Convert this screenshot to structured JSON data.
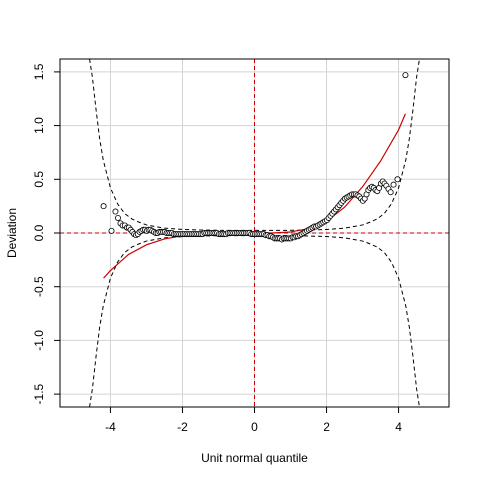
{
  "chart_data": {
    "type": "scatter",
    "title": "",
    "xlabel": "Unit normal quantile",
    "ylabel": "Deviation",
    "xlim": [
      -5.4,
      5.4
    ],
    "ylim": [
      -1.62,
      1.62
    ],
    "x_ticks": [
      -4,
      -2,
      0,
      2,
      4
    ],
    "x_tick_labels": [
      "-4",
      "-2",
      "0",
      "2",
      "4"
    ],
    "y_ticks": [
      -1.5,
      -1.0,
      -0.5,
      0.0,
      0.5,
      1.0,
      1.5
    ],
    "y_tick_labels": [
      "-1.5",
      "-1.0",
      "-0.5",
      "0.0",
      "0.5",
      "1.0",
      "1.5"
    ],
    "grid": true,
    "reference_lines": {
      "x": 0,
      "y": 0,
      "color": "#cc0000",
      "style": "dashed"
    },
    "series": [
      {
        "kind": "points",
        "marker": "open-circle",
        "color": "#000000",
        "fill": "#ffffff",
        "x": [
          -4.19,
          -3.97,
          -3.86,
          -3.79,
          -3.72,
          -3.66,
          -3.6,
          -3.54,
          -3.49,
          -3.44,
          -3.39,
          -3.34,
          -3.29,
          -3.24,
          -3.19,
          -3.14,
          -3.09,
          -3.04,
          -2.99,
          -2.94,
          -2.89,
          -2.84,
          -2.79,
          -2.74,
          -2.69,
          -2.64,
          -2.59,
          -2.54,
          -2.49,
          -2.44,
          -2.39,
          -2.34,
          -2.29,
          -2.24,
          -2.19,
          -2.14,
          -2.09,
          -2.04,
          -1.99,
          -1.94,
          -1.89,
          -1.84,
          -1.79,
          -1.74,
          -1.69,
          -1.64,
          -1.59,
          -1.54,
          -1.49,
          -1.44,
          -1.39,
          -1.34,
          -1.29,
          -1.24,
          -1.19,
          -1.14,
          -1.09,
          -1.04,
          -0.99,
          -0.94,
          -0.89,
          -0.84,
          -0.79,
          -0.74,
          -0.69,
          -0.64,
          -0.59,
          -0.54,
          -0.49,
          -0.44,
          -0.39,
          -0.34,
          -0.29,
          -0.24,
          -0.19,
          -0.14,
          -0.09,
          -0.04,
          0.01,
          0.06,
          0.11,
          0.16,
          0.21,
          0.26,
          0.31,
          0.36,
          0.41,
          0.46,
          0.51,
          0.56,
          0.61,
          0.66,
          0.71,
          0.76,
          0.81,
          0.86,
          0.91,
          0.96,
          1.01,
          1.06,
          1.11,
          1.16,
          1.21,
          1.26,
          1.31,
          1.36,
          1.41,
          1.46,
          1.51,
          1.56,
          1.61,
          1.66,
          1.71,
          1.76,
          1.81,
          1.86,
          1.91,
          1.96,
          2.01,
          2.06,
          2.11,
          2.16,
          2.21,
          2.26,
          2.31,
          2.36,
          2.41,
          2.46,
          2.51,
          2.56,
          2.61,
          2.66,
          2.71,
          2.76,
          2.81,
          2.86,
          2.91,
          2.96,
          3.01,
          3.06,
          3.11,
          3.16,
          3.21,
          3.26,
          3.31,
          3.36,
          3.41,
          3.46,
          3.51,
          3.56,
          3.61,
          3.66,
          3.72,
          3.78,
          3.86,
          3.97,
          4.19
        ],
        "y": [
          0.25,
          0.02,
          0.2,
          0.14,
          0.09,
          0.07,
          0.07,
          0.05,
          0.05,
          0.03,
          0.01,
          -0.01,
          -0.02,
          -0.01,
          0.01,
          0.02,
          0.03,
          0.03,
          0.02,
          0.03,
          0.03,
          0.02,
          0.01,
          0.0,
          0.0,
          0.01,
          0.01,
          0.01,
          0.01,
          0.0,
          0.0,
          0.0,
          0.0,
          -0.01,
          -0.01,
          -0.01,
          -0.01,
          -0.01,
          -0.01,
          -0.01,
          -0.01,
          -0.01,
          -0.01,
          -0.01,
          -0.01,
          -0.01,
          -0.01,
          -0.01,
          -0.01,
          -0.01,
          0.0,
          0.0,
          0.0,
          0.0,
          0.0,
          0.0,
          0.0,
          0.0,
          -0.01,
          -0.01,
          -0.01,
          -0.01,
          -0.01,
          0.0,
          0.0,
          0.0,
          0.0,
          0.0,
          0.0,
          0.0,
          0.0,
          0.0,
          0.0,
          0.0,
          0.0,
          0.0,
          -0.01,
          -0.01,
          -0.01,
          -0.01,
          -0.01,
          -0.01,
          -0.01,
          -0.01,
          -0.02,
          -0.02,
          -0.03,
          -0.03,
          -0.04,
          -0.05,
          -0.05,
          -0.05,
          -0.05,
          -0.06,
          -0.05,
          -0.05,
          -0.05,
          -0.05,
          -0.05,
          -0.04,
          -0.04,
          -0.03,
          -0.03,
          -0.02,
          -0.01,
          0.0,
          0.01,
          0.02,
          0.03,
          0.04,
          0.05,
          0.06,
          0.06,
          0.07,
          0.08,
          0.09,
          0.1,
          0.11,
          0.12,
          0.14,
          0.16,
          0.18,
          0.2,
          0.22,
          0.24,
          0.26,
          0.28,
          0.3,
          0.32,
          0.33,
          0.34,
          0.35,
          0.36,
          0.36,
          0.36,
          0.35,
          0.34,
          0.32,
          0.3,
          0.32,
          0.36,
          0.4,
          0.42,
          0.43,
          0.42,
          0.4,
          0.39,
          0.42,
          0.46,
          0.48,
          0.46,
          0.44,
          0.41,
          0.38,
          0.45,
          0.5,
          1.47
        ]
      },
      {
        "kind": "line",
        "style": "solid",
        "color": "#cc0000",
        "x": [
          -4.19,
          -4.0,
          -3.5,
          -3.0,
          -2.5,
          -2.0,
          -1.5,
          -1.0,
          -0.5,
          0.0,
          0.5,
          1.0,
          1.5,
          2.0,
          2.5,
          3.0,
          3.5,
          4.0,
          4.19
        ],
        "y": [
          -0.42,
          -0.35,
          -0.2,
          -0.11,
          -0.055,
          -0.025,
          -0.01,
          -0.003,
          0.0,
          0.0,
          0.0,
          0.01,
          0.04,
          0.11,
          0.24,
          0.43,
          0.67,
          0.96,
          1.11
        ]
      },
      {
        "kind": "line",
        "style": "dashed",
        "color": "#000000",
        "x": [
          -4.58,
          -4.5,
          -4.4,
          -4.3,
          -4.2,
          -4.0,
          -3.8,
          -3.6,
          -3.4,
          -3.2,
          -3.0,
          -2.5,
          -2.0,
          -1.5,
          -1.0,
          -0.5,
          0.0,
          0.5,
          1.0,
          1.5,
          2.0,
          2.5,
          3.0,
          3.2,
          3.4,
          3.6,
          3.8,
          4.0,
          4.2,
          4.3,
          4.4,
          4.5,
          4.58
        ],
        "y": [
          1.62,
          1.45,
          1.15,
          0.88,
          0.68,
          0.42,
          0.27,
          0.18,
          0.13,
          0.1,
          0.075,
          0.045,
          0.033,
          0.028,
          0.025,
          0.024,
          0.024,
          0.024,
          0.025,
          0.028,
          0.033,
          0.045,
          0.075,
          0.1,
          0.13,
          0.18,
          0.27,
          0.42,
          0.68,
          0.88,
          1.15,
          1.45,
          1.62
        ]
      },
      {
        "kind": "line",
        "style": "dashed",
        "color": "#000000",
        "x": [
          -4.58,
          -4.5,
          -4.4,
          -4.3,
          -4.2,
          -4.0,
          -3.8,
          -3.6,
          -3.4,
          -3.2,
          -3.0,
          -2.5,
          -2.0,
          -1.5,
          -1.0,
          -0.5,
          0.0,
          0.5,
          1.0,
          1.5,
          2.0,
          2.5,
          3.0,
          3.2,
          3.4,
          3.6,
          3.8,
          4.0,
          4.2,
          4.3,
          4.4,
          4.5,
          4.58
        ],
        "y": [
          -1.62,
          -1.45,
          -1.15,
          -0.88,
          -0.68,
          -0.42,
          -0.27,
          -0.18,
          -0.13,
          -0.1,
          -0.075,
          -0.045,
          -0.033,
          -0.028,
          -0.025,
          -0.024,
          -0.024,
          -0.024,
          -0.025,
          -0.028,
          -0.033,
          -0.045,
          -0.075,
          -0.1,
          -0.13,
          -0.18,
          -0.27,
          -0.42,
          -0.68,
          -0.88,
          -1.15,
          -1.45,
          -1.62
        ]
      }
    ]
  }
}
